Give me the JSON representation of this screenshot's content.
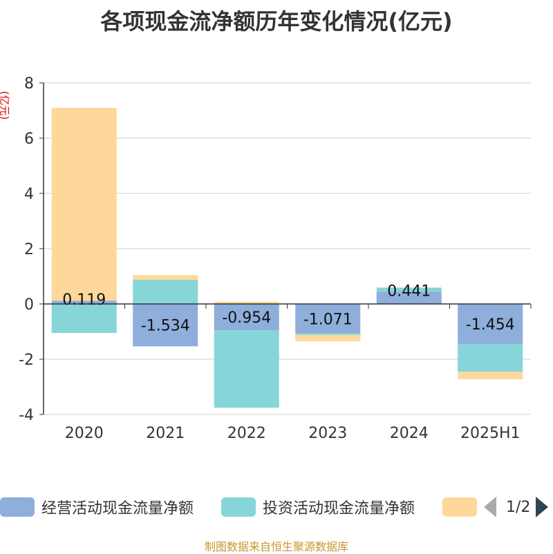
{
  "title": "各项现金流净额历年变化情况(亿元)",
  "source": "制图数据来自恒生聚源数据库",
  "pager": {
    "text": "1/2"
  },
  "colors": {
    "operating": "#8eaedb",
    "investing": "#86d5d8",
    "financing": "#fdd89a",
    "grid": "#cccccc",
    "axis": "#333333"
  },
  "chart_data": {
    "type": "bar",
    "stacked": true,
    "title": "各项现金流净额历年变化情况(亿元)",
    "ylabel": "(亿元)",
    "ylim": [
      -4,
      8
    ],
    "yticks": [
      8,
      6,
      4,
      2,
      0,
      -2,
      -4
    ],
    "categories": [
      "2020",
      "2021",
      "2022",
      "2023",
      "2024",
      "2025H1"
    ],
    "series": [
      {
        "name": "经营活动现金流量净额",
        "values": [
          0.119,
          -1.534,
          -0.954,
          -1.071,
          0.441,
          -1.454
        ],
        "labels": [
          "0.119",
          "-1.534",
          "-0.954",
          "-1.071",
          "0.441",
          "-1.454"
        ]
      },
      {
        "name": "投资活动现金流量净额",
        "values": [
          -1.05,
          0.87,
          -2.8,
          -0.05,
          0.15,
          -1.0
        ]
      },
      {
        "name": "",
        "values": [
          6.98,
          0.17,
          0.08,
          -0.23,
          0.0,
          -0.27
        ]
      }
    ],
    "legend": [
      "经营活动现金流量净额",
      "投资活动现金流量净额",
      ""
    ]
  }
}
